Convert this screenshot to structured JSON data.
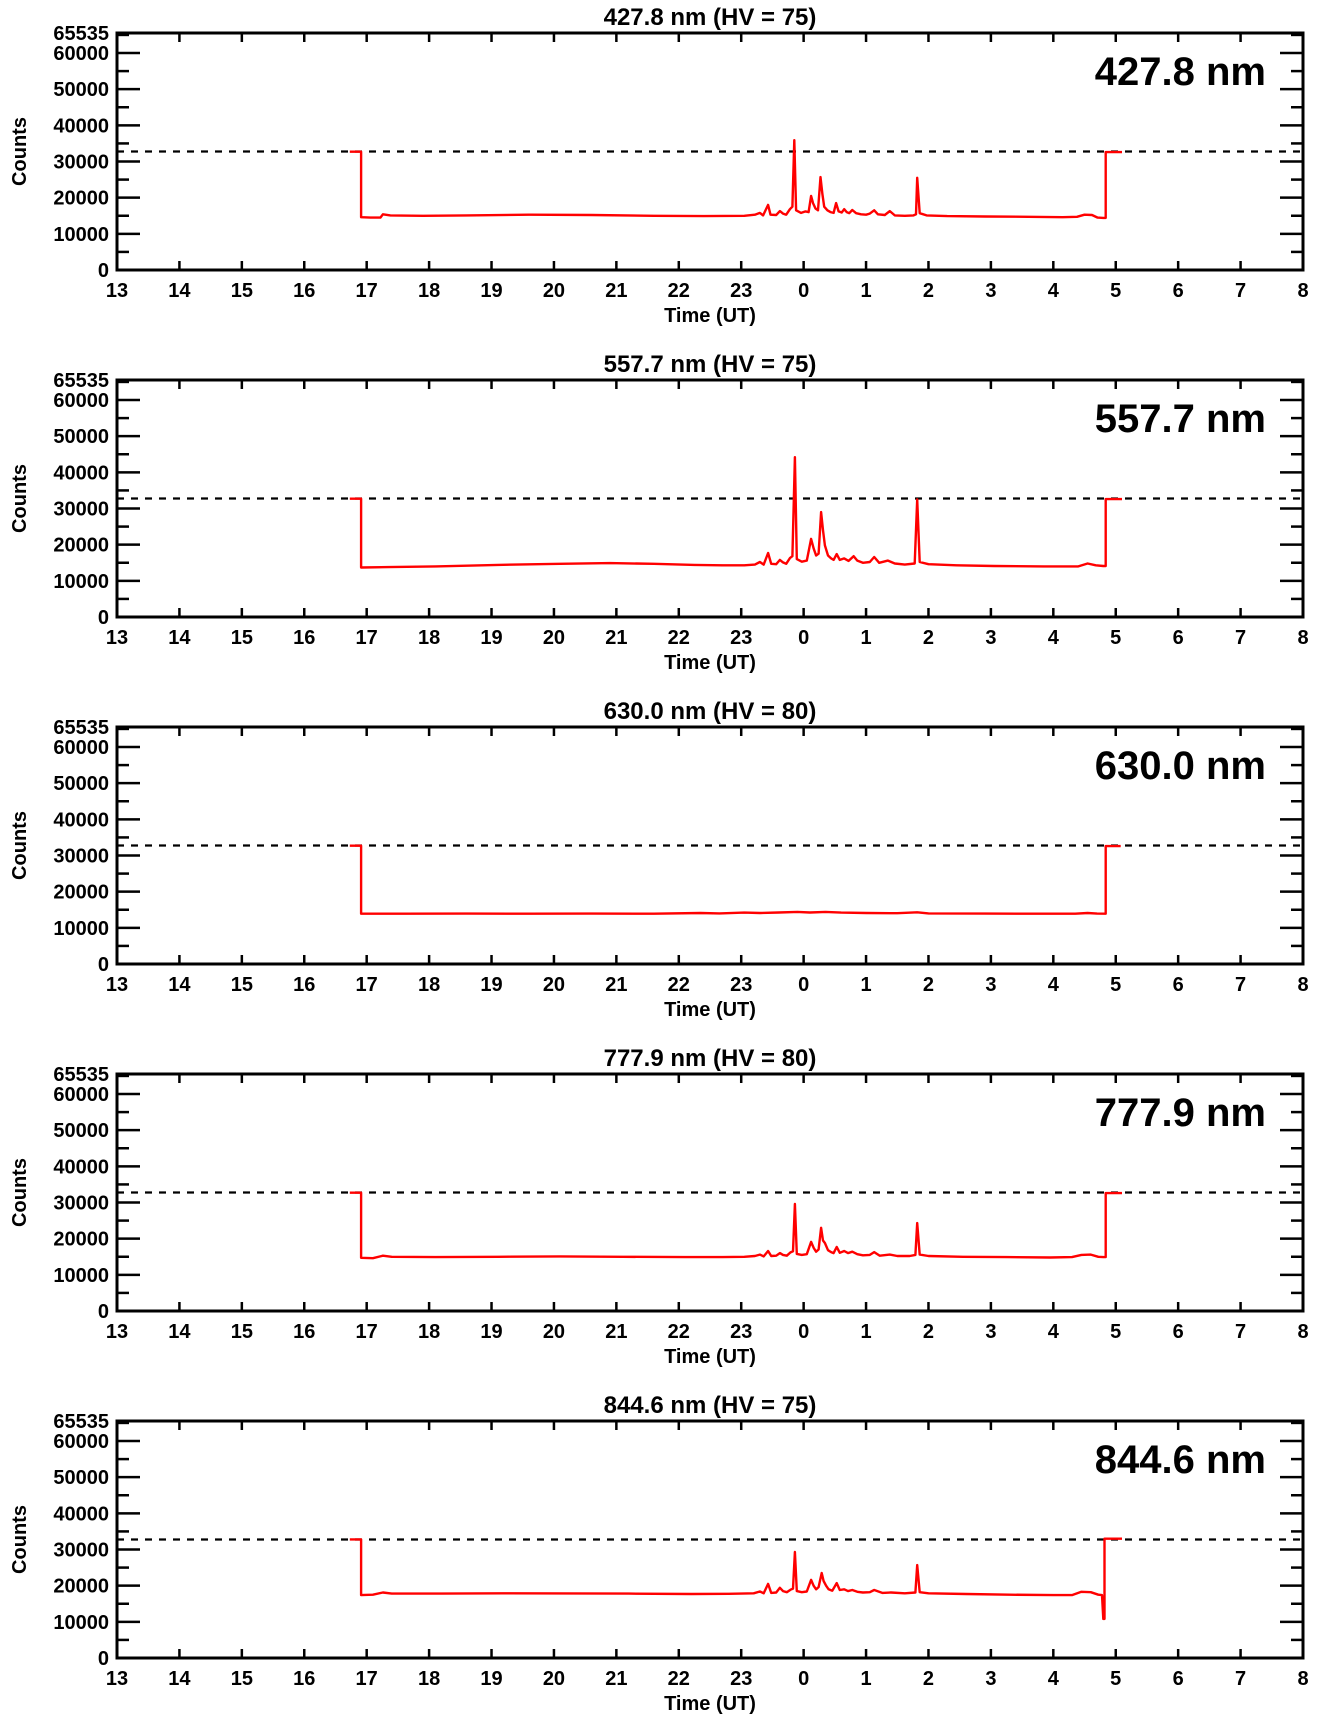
{
  "figure": {
    "description": "Five stacked photometer count time-series panels",
    "background": "#ffffff",
    "axis_color": "#000000",
    "line_color": "#ff0000",
    "threshold_color": "#000000"
  },
  "axes": {
    "xlabel": "Time (UT)",
    "ylabel": "Counts",
    "x_tick_labels": [
      "13",
      "14",
      "15",
      "16",
      "17",
      "18",
      "19",
      "20",
      "21",
      "22",
      "23",
      "0",
      "1",
      "2",
      "3",
      "4",
      "5",
      "6",
      "7",
      "8"
    ],
    "x_tick_values": [
      13,
      14,
      15,
      16,
      17,
      18,
      19,
      20,
      21,
      22,
      23,
      24,
      25,
      26,
      27,
      28,
      29,
      30,
      31,
      32
    ],
    "xlim": [
      13,
      32
    ],
    "ylim": [
      0,
      65535
    ],
    "y_major_tick_values": [
      0,
      10000,
      20000,
      30000,
      40000,
      50000,
      60000
    ],
    "y_major_tick_labels": [
      "0",
      "10000",
      "20000",
      "30000",
      "40000",
      "50000",
      "60000"
    ],
    "y_top_label": "65535",
    "y_minor_step": 5000,
    "grid": "off",
    "threshold_line_value": 32768,
    "threshold_line_style": "dashed"
  },
  "chart_data": [
    {
      "type": "line",
      "title": "427.8 nm (HV = 75)",
      "annotation": "427.8 nm",
      "wavelength_nm": "427.8",
      "hv": 75,
      "xlabel": "Time (UT)",
      "ylabel": "Counts",
      "ylim": [
        0,
        65535
      ],
      "threshold": 32768,
      "series_keypoints": [
        [
          16.73,
          32700
        ],
        [
          16.91,
          32700
        ],
        [
          16.91,
          14600
        ],
        [
          17.06,
          14500
        ],
        [
          17.22,
          14500
        ],
        [
          17.26,
          15400
        ],
        [
          17.38,
          15100
        ],
        [
          17.9,
          15000
        ],
        [
          18.6,
          15100
        ],
        [
          19.6,
          15300
        ],
        [
          20.6,
          15200
        ],
        [
          21.6,
          15000
        ],
        [
          22.4,
          14900
        ],
        [
          23.05,
          15000
        ],
        [
          23.22,
          15300
        ],
        [
          23.3,
          15800
        ],
        [
          23.35,
          15100
        ],
        [
          23.43,
          18000
        ],
        [
          23.47,
          15300
        ],
        [
          23.56,
          15200
        ],
        [
          23.62,
          16300
        ],
        [
          23.67,
          15600
        ],
        [
          23.72,
          15300
        ],
        [
          23.78,
          16800
        ],
        [
          23.82,
          17500
        ],
        [
          23.85,
          35900
        ],
        [
          23.88,
          16500
        ],
        [
          23.96,
          15800
        ],
        [
          24.03,
          16200
        ],
        [
          24.08,
          16000
        ],
        [
          24.12,
          20500
        ],
        [
          24.15,
          18500
        ],
        [
          24.19,
          17000
        ],
        [
          24.23,
          16500
        ],
        [
          24.27,
          25700
        ],
        [
          24.3,
          21000
        ],
        [
          24.33,
          17500
        ],
        [
          24.38,
          16500
        ],
        [
          24.43,
          16000
        ],
        [
          24.48,
          15800
        ],
        [
          24.52,
          18500
        ],
        [
          24.56,
          16200
        ],
        [
          24.61,
          15900
        ],
        [
          24.65,
          16800
        ],
        [
          24.69,
          16000
        ],
        [
          24.73,
          15700
        ],
        [
          24.78,
          16600
        ],
        [
          24.84,
          15700
        ],
        [
          24.92,
          15400
        ],
        [
          25.0,
          15300
        ],
        [
          25.06,
          15600
        ],
        [
          25.13,
          16500
        ],
        [
          25.19,
          15400
        ],
        [
          25.3,
          15200
        ],
        [
          25.38,
          16300
        ],
        [
          25.46,
          15100
        ],
        [
          25.62,
          15000
        ],
        [
          25.76,
          15100
        ],
        [
          25.8,
          15400
        ],
        [
          25.82,
          25500
        ],
        [
          25.86,
          15700
        ],
        [
          25.97,
          15100
        ],
        [
          26.3,
          14900
        ],
        [
          26.9,
          14800
        ],
        [
          27.6,
          14700
        ],
        [
          28.15,
          14600
        ],
        [
          28.38,
          14700
        ],
        [
          28.5,
          15300
        ],
        [
          28.62,
          15200
        ],
        [
          28.71,
          14500
        ],
        [
          28.8,
          14400
        ],
        [
          28.84,
          14400
        ],
        [
          28.84,
          32600
        ],
        [
          29.1,
          32600
        ]
      ]
    },
    {
      "type": "line",
      "title": "557.7 nm (HV = 75)",
      "annotation": "557.7 nm",
      "wavelength_nm": "557.7",
      "hv": 75,
      "xlabel": "Time (UT)",
      "ylabel": "Counts",
      "ylim": [
        0,
        65535
      ],
      "threshold": 32768,
      "series_keypoints": [
        [
          16.73,
          32700
        ],
        [
          16.91,
          32700
        ],
        [
          16.91,
          13700
        ],
        [
          17.35,
          13800
        ],
        [
          18.1,
          14000
        ],
        [
          19.1,
          14400
        ],
        [
          20.1,
          14700
        ],
        [
          20.9,
          14900
        ],
        [
          21.6,
          14700
        ],
        [
          22.25,
          14400
        ],
        [
          22.7,
          14300
        ],
        [
          23.05,
          14300
        ],
        [
          23.22,
          14500
        ],
        [
          23.3,
          15200
        ],
        [
          23.36,
          14500
        ],
        [
          23.43,
          17700
        ],
        [
          23.48,
          14700
        ],
        [
          23.56,
          14600
        ],
        [
          23.62,
          15800
        ],
        [
          23.67,
          15100
        ],
        [
          23.72,
          14700
        ],
        [
          23.78,
          16300
        ],
        [
          23.82,
          16800
        ],
        [
          23.86,
          44200
        ],
        [
          23.89,
          16000
        ],
        [
          23.97,
          15300
        ],
        [
          24.05,
          15600
        ],
        [
          24.12,
          21600
        ],
        [
          24.16,
          19000
        ],
        [
          24.2,
          17000
        ],
        [
          24.24,
          17500
        ],
        [
          24.28,
          29000
        ],
        [
          24.31,
          24000
        ],
        [
          24.34,
          19800
        ],
        [
          24.39,
          17000
        ],
        [
          24.44,
          16200
        ],
        [
          24.48,
          15800
        ],
        [
          24.53,
          17400
        ],
        [
          24.58,
          15800
        ],
        [
          24.65,
          16200
        ],
        [
          24.72,
          15500
        ],
        [
          24.8,
          16800
        ],
        [
          24.86,
          15600
        ],
        [
          24.95,
          15000
        ],
        [
          25.06,
          15200
        ],
        [
          25.13,
          16600
        ],
        [
          25.21,
          15000
        ],
        [
          25.35,
          15600
        ],
        [
          25.46,
          14800
        ],
        [
          25.62,
          14500
        ],
        [
          25.78,
          14800
        ],
        [
          25.82,
          32500
        ],
        [
          25.86,
          15200
        ],
        [
          26.0,
          14600
        ],
        [
          26.45,
          14300
        ],
        [
          27.05,
          14100
        ],
        [
          27.85,
          14000
        ],
        [
          28.4,
          14000
        ],
        [
          28.55,
          14800
        ],
        [
          28.68,
          14300
        ],
        [
          28.8,
          14100
        ],
        [
          28.84,
          14100
        ],
        [
          28.84,
          32600
        ],
        [
          29.1,
          32600
        ]
      ]
    },
    {
      "type": "line",
      "title": "630.0 nm (HV = 80)",
      "annotation": "630.0 nm",
      "wavelength_nm": "630.0",
      "hv": 80,
      "xlabel": "Time (UT)",
      "ylabel": "Counts",
      "ylim": [
        0,
        65535
      ],
      "threshold": 32768,
      "series_keypoints": [
        [
          16.73,
          32700
        ],
        [
          16.91,
          32700
        ],
        [
          16.91,
          13900
        ],
        [
          17.6,
          13900
        ],
        [
          18.6,
          13950
        ],
        [
          19.6,
          13900
        ],
        [
          20.6,
          13950
        ],
        [
          21.6,
          13900
        ],
        [
          22.35,
          14100
        ],
        [
          22.65,
          14000
        ],
        [
          23.05,
          14200
        ],
        [
          23.3,
          14100
        ],
        [
          23.6,
          14250
        ],
        [
          23.9,
          14400
        ],
        [
          24.1,
          14250
        ],
        [
          24.35,
          14400
        ],
        [
          24.6,
          14200
        ],
        [
          25.0,
          14100
        ],
        [
          25.5,
          14050
        ],
        [
          25.82,
          14300
        ],
        [
          26.0,
          14000
        ],
        [
          26.9,
          13950
        ],
        [
          27.7,
          13900
        ],
        [
          28.35,
          13900
        ],
        [
          28.55,
          14100
        ],
        [
          28.7,
          13950
        ],
        [
          28.84,
          13900
        ],
        [
          28.84,
          32600
        ],
        [
          29.08,
          32600
        ]
      ]
    },
    {
      "type": "line",
      "title": "777.9 nm (HV = 80)",
      "annotation": "777.9 nm",
      "wavelength_nm": "777.9",
      "hv": 80,
      "xlabel": "Time (UT)",
      "ylabel": "Counts",
      "ylim": [
        0,
        65535
      ],
      "threshold": 32768,
      "series_keypoints": [
        [
          16.73,
          32700
        ],
        [
          16.91,
          32700
        ],
        [
          16.91,
          14700
        ],
        [
          17.1,
          14600
        ],
        [
          17.26,
          15300
        ],
        [
          17.4,
          15000
        ],
        [
          18.1,
          14900
        ],
        [
          19.1,
          15000
        ],
        [
          20.1,
          15100
        ],
        [
          21.1,
          15000
        ],
        [
          22.1,
          14900
        ],
        [
          22.7,
          14900
        ],
        [
          23.05,
          15000
        ],
        [
          23.22,
          15200
        ],
        [
          23.3,
          15600
        ],
        [
          23.36,
          15100
        ],
        [
          23.43,
          16600
        ],
        [
          23.48,
          15200
        ],
        [
          23.56,
          15300
        ],
        [
          23.62,
          16000
        ],
        [
          23.67,
          15500
        ],
        [
          23.73,
          15300
        ],
        [
          23.79,
          16200
        ],
        [
          23.83,
          16500
        ],
        [
          23.86,
          29600
        ],
        [
          23.89,
          15800
        ],
        [
          23.97,
          15500
        ],
        [
          24.05,
          15700
        ],
        [
          24.12,
          19100
        ],
        [
          24.16,
          17500
        ],
        [
          24.2,
          16400
        ],
        [
          24.24,
          17000
        ],
        [
          24.28,
          23000
        ],
        [
          24.31,
          19500
        ],
        [
          24.34,
          18800
        ],
        [
          24.39,
          16800
        ],
        [
          24.44,
          16300
        ],
        [
          24.48,
          16000
        ],
        [
          24.53,
          17700
        ],
        [
          24.58,
          16100
        ],
        [
          24.65,
          16600
        ],
        [
          24.71,
          16000
        ],
        [
          24.78,
          16400
        ],
        [
          24.86,
          15700
        ],
        [
          24.95,
          15400
        ],
        [
          25.06,
          15500
        ],
        [
          25.13,
          16300
        ],
        [
          25.22,
          15300
        ],
        [
          25.38,
          15600
        ],
        [
          25.5,
          15200
        ],
        [
          25.7,
          15200
        ],
        [
          25.79,
          15500
        ],
        [
          25.82,
          24300
        ],
        [
          25.86,
          15600
        ],
        [
          26.0,
          15200
        ],
        [
          26.55,
          15000
        ],
        [
          27.25,
          14900
        ],
        [
          27.95,
          14800
        ],
        [
          28.3,
          14900
        ],
        [
          28.45,
          15500
        ],
        [
          28.6,
          15600
        ],
        [
          28.72,
          15000
        ],
        [
          28.8,
          14900
        ],
        [
          28.84,
          14900
        ],
        [
          28.84,
          32600
        ],
        [
          29.1,
          32600
        ]
      ]
    },
    {
      "type": "line",
      "title": "844.6 nm (HV = 75)",
      "annotation": "844.6 nm",
      "wavelength_nm": "844.6",
      "hv": 75,
      "xlabel": "Time (UT)",
      "ylabel": "Counts",
      "ylim": [
        0,
        65535
      ],
      "threshold": 32768,
      "series_keypoints": [
        [
          16.73,
          32800
        ],
        [
          16.91,
          32800
        ],
        [
          16.91,
          17400
        ],
        [
          17.1,
          17500
        ],
        [
          17.26,
          18100
        ],
        [
          17.4,
          17800
        ],
        [
          18.2,
          17800
        ],
        [
          19.2,
          17900
        ],
        [
          20.2,
          17850
        ],
        [
          21.2,
          17800
        ],
        [
          22.2,
          17700
        ],
        [
          22.8,
          17750
        ],
        [
          23.2,
          17900
        ],
        [
          23.3,
          18400
        ],
        [
          23.36,
          17900
        ],
        [
          23.43,
          20500
        ],
        [
          23.48,
          18000
        ],
        [
          23.56,
          18100
        ],
        [
          23.62,
          19400
        ],
        [
          23.67,
          18500
        ],
        [
          23.73,
          18200
        ],
        [
          23.79,
          18900
        ],
        [
          23.83,
          19200
        ],
        [
          23.86,
          29300
        ],
        [
          23.89,
          18500
        ],
        [
          23.97,
          18200
        ],
        [
          24.05,
          18400
        ],
        [
          24.12,
          21600
        ],
        [
          24.16,
          20000
        ],
        [
          24.2,
          19000
        ],
        [
          24.24,
          19600
        ],
        [
          24.29,
          23500
        ],
        [
          24.32,
          21300
        ],
        [
          24.36,
          20000
        ],
        [
          24.4,
          19000
        ],
        [
          24.46,
          18600
        ],
        [
          24.53,
          20700
        ],
        [
          24.58,
          18800
        ],
        [
          24.65,
          19000
        ],
        [
          24.71,
          18500
        ],
        [
          24.78,
          18800
        ],
        [
          24.86,
          18300
        ],
        [
          24.95,
          18100
        ],
        [
          25.06,
          18200
        ],
        [
          25.13,
          18800
        ],
        [
          25.26,
          18000
        ],
        [
          25.4,
          18100
        ],
        [
          25.62,
          17900
        ],
        [
          25.79,
          18100
        ],
        [
          25.82,
          25700
        ],
        [
          25.86,
          18200
        ],
        [
          26.0,
          17900
        ],
        [
          26.6,
          17700
        ],
        [
          27.3,
          17500
        ],
        [
          28.0,
          17400
        ],
        [
          28.3,
          17400
        ],
        [
          28.45,
          18300
        ],
        [
          28.6,
          18200
        ],
        [
          28.72,
          17500
        ],
        [
          28.78,
          17400
        ],
        [
          28.8,
          10800
        ],
        [
          28.82,
          10800
        ],
        [
          28.82,
          33000
        ],
        [
          29.1,
          33000
        ]
      ]
    }
  ]
}
